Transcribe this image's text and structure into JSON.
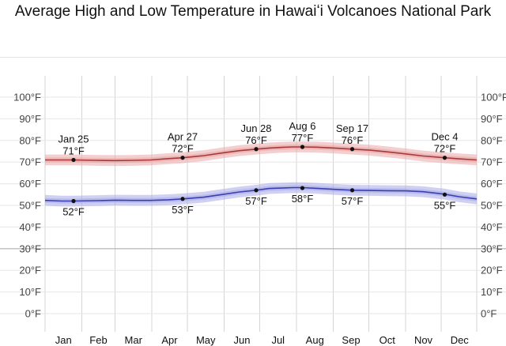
{
  "chart_data": {
    "type": "line",
    "title": "Average High and Low Temperature in Hawaiʻi Volcanoes National Park",
    "x_categories": [
      "Jan",
      "Feb",
      "Mar",
      "Apr",
      "May",
      "Jun",
      "Jul",
      "Aug",
      "Sep",
      "Oct",
      "Nov",
      "Dec"
    ],
    "y_ticks": [
      "0°F",
      "10°F",
      "20°F",
      "30°F",
      "40°F",
      "50°F",
      "60°F",
      "70°F",
      "80°F",
      "90°F",
      "100°F"
    ],
    "ylim": [
      0,
      100
    ],
    "series": [
      {
        "color": "#a63a3a",
        "band_color": "#e9a7a7",
        "x": [
          1,
          15,
          25,
          45,
          60,
          75,
          90,
          105,
          117,
          135,
          150,
          165,
          179,
          190,
          200,
          210,
          218,
          230,
          245,
          260,
          275,
          290,
          305,
          320,
          338,
          350,
          365
        ],
        "y": [
          71.0,
          71.0,
          71.0,
          70.8,
          70.7,
          70.8,
          71.0,
          71.6,
          72.0,
          73.0,
          74.2,
          75.3,
          76.0,
          76.5,
          76.8,
          77.0,
          77.0,
          76.9,
          76.5,
          76.0,
          75.5,
          74.7,
          73.8,
          72.8,
          72.0,
          71.5,
          71.0
        ],
        "band_halfwidth": [
          2.5,
          2.5,
          2.5,
          2.5,
          2.5,
          2.5,
          2.5,
          2.5,
          2.5,
          2.5,
          2.5,
          2.5,
          2.5,
          2.5,
          2.5,
          2.5,
          2.5,
          2.5,
          2.5,
          2.5,
          2.5,
          2.5,
          2.5,
          2.5,
          2.5,
          2.5,
          2.5
        ]
      },
      {
        "color": "#3b3fb0",
        "band_color": "#a9ace8",
        "x": [
          1,
          15,
          25,
          45,
          60,
          75,
          90,
          105,
          117,
          135,
          150,
          165,
          179,
          190,
          200,
          210,
          218,
          230,
          245,
          260,
          275,
          290,
          305,
          320,
          338,
          350,
          365
        ],
        "y": [
          52.3,
          52.0,
          52.0,
          52.2,
          52.4,
          52.3,
          52.3,
          52.6,
          53.0,
          53.8,
          55.0,
          56.2,
          57.0,
          57.8,
          58.0,
          58.2,
          58.2,
          57.9,
          57.4,
          57.0,
          56.9,
          56.8,
          56.7,
          56.3,
          55.2,
          54.0,
          53.0
        ],
        "band_halfwidth": [
          2.5,
          2.5,
          2.5,
          2.5,
          2.5,
          2.5,
          2.5,
          2.5,
          2.5,
          2.5,
          2.5,
          2.5,
          2.5,
          2.5,
          2.5,
          2.5,
          2.5,
          2.5,
          2.5,
          2.5,
          2.5,
          2.5,
          2.5,
          2.5,
          2.5,
          2.5,
          2.5
        ]
      }
    ],
    "annotations": [
      {
        "date": "Jan 25",
        "day": 25,
        "value": 71,
        "label": "71°F",
        "series": 0,
        "pos": "above"
      },
      {
        "date": "Apr 27",
        "day": 117,
        "value": 72,
        "label": "72°F",
        "series": 0,
        "pos": "above"
      },
      {
        "date": "Jun 28",
        "day": 179,
        "value": 76,
        "label": "76°F",
        "series": 0,
        "pos": "above"
      },
      {
        "date": "Aug 6",
        "day": 218,
        "value": 77,
        "label": "77°F",
        "series": 0,
        "pos": "above"
      },
      {
        "date": "Sep 17",
        "day": 260,
        "value": 76,
        "label": "76°F",
        "series": 0,
        "pos": "above"
      },
      {
        "date": "Dec 4",
        "day": 338,
        "value": 72,
        "label": "72°F",
        "series": 0,
        "pos": "above"
      },
      {
        "date": "",
        "day": 25,
        "value": 52,
        "label": "52°F",
        "series": 1,
        "pos": "below"
      },
      {
        "date": "",
        "day": 117,
        "value": 53,
        "label": "53°F",
        "series": 1,
        "pos": "below"
      },
      {
        "date": "",
        "day": 179,
        "value": 57,
        "label": "57°F",
        "series": 1,
        "pos": "below"
      },
      {
        "date": "",
        "day": 218,
        "value": 58,
        "label": "58°F",
        "series": 1,
        "pos": "below"
      },
      {
        "date": "",
        "day": 260,
        "value": 57,
        "label": "57°F",
        "series": 1,
        "pos": "below"
      },
      {
        "date": "",
        "day": 338,
        "value": 55,
        "label": "55°F",
        "series": 1,
        "pos": "below"
      }
    ],
    "grid": true
  }
}
